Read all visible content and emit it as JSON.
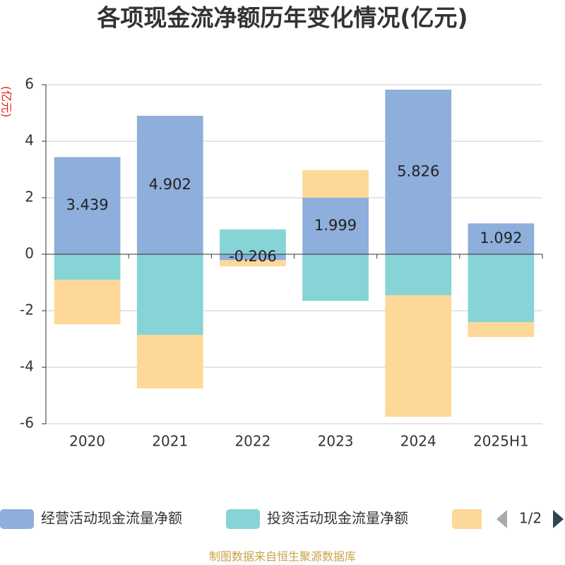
{
  "chart_data": {
    "type": "bar",
    "stacked": true,
    "title": "各项现金流净额历年变化情况(亿元)",
    "ylabel": "(亿元)",
    "categories": [
      "2020",
      "2021",
      "2022",
      "2023",
      "2024",
      "2025H1"
    ],
    "ylim": [
      -6,
      6
    ],
    "yticks": [
      -6,
      -4,
      -2,
      0,
      2,
      4,
      6
    ],
    "grid": true,
    "legend_position": "bottom",
    "series": [
      {
        "name": "经营活动现金流量净额",
        "color": "#8eaedb",
        "show_labels": true,
        "values": [
          3.439,
          4.902,
          -0.206,
          1.999,
          5.826,
          1.092
        ]
      },
      {
        "name": "投资活动现金流量净额",
        "color": "#86d4d6",
        "values": [
          -0.9,
          -2.85,
          0.88,
          -1.65,
          -1.45,
          -2.4
        ]
      },
      {
        "color": "#fdd898",
        "values": [
          -1.58,
          -1.9,
          -0.22,
          0.98,
          -4.3,
          -0.53
        ]
      }
    ]
  },
  "legend": {
    "page": "1/2",
    "prev_icon": "arrow-left-icon",
    "next_icon": "arrow-right-icon"
  },
  "footer": "制图数据来自恒生聚源数据库"
}
